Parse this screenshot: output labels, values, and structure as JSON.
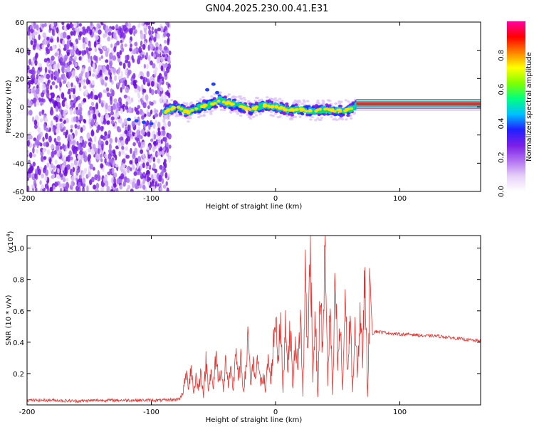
{
  "title": "GN04.2025.230.00.41.E31",
  "chart_data": [
    {
      "type": "heatmap",
      "xlabel": "Height of straight line (km)",
      "ylabel": "Frequency (Hz)",
      "xlim": [
        -200,
        165
      ],
      "ylim": [
        -60,
        60
      ],
      "x_ticks": [
        -200,
        -100,
        0,
        100
      ],
      "y_ticks": [
        -60,
        -40,
        -20,
        0,
        20,
        40,
        60
      ],
      "colorbar": {
        "label": "Normalized spectral amplitude",
        "range": [
          0,
          1
        ],
        "ticks": [
          "0.0",
          "0.2",
          "0.4",
          "0.6",
          "0.8"
        ],
        "colors": [
          "#ffffff",
          "#e6d0f8",
          "#b070f0",
          "#7a1ee8",
          "#2020ff",
          "#00c0ff",
          "#00ff80",
          "#80ff00",
          "#ffff00",
          "#ff8000",
          "#ff0000",
          "#ff00a0"
        ]
      },
      "ridge": {
        "x": [
          -110,
          -100,
          -90,
          -80,
          -70,
          -60,
          -50,
          -45,
          -40,
          -30,
          -20,
          -10,
          0,
          10,
          20,
          30,
          40,
          50,
          60,
          65,
          80,
          100,
          120,
          140,
          165
        ],
        "y": [
          -10,
          -12,
          -4,
          0,
          -4,
          0,
          2,
          5,
          3,
          1,
          -2,
          1,
          0,
          -2,
          -2,
          -3,
          -2,
          -3,
          -2,
          1,
          1,
          2,
          2,
          2,
          2
        ]
      }
    },
    {
      "type": "line",
      "xlabel": "Height of straight line (km)",
      "ylabel": "SNR (10 * v/v)",
      "multiplier": "(x10",
      "multiplier_exp": "4",
      "xlim": [
        -200,
        165
      ],
      "ylim": [
        0.0,
        1.08
      ],
      "x_ticks": [
        -200,
        -100,
        0,
        100
      ],
      "y_ticks": [
        0.2,
        0.4,
        0.6,
        0.8,
        1.0
      ],
      "series": [
        {
          "color": "#e8302c",
          "x": [
            -200,
            -180,
            -160,
            -140,
            -120,
            -100,
            -90,
            -80,
            -76,
            -74,
            -72,
            -70,
            -68,
            -66,
            -64,
            -62,
            -60,
            -58,
            -56,
            -54,
            -52,
            -50,
            -48,
            -46,
            -44,
            -42,
            -40,
            -38,
            -36,
            -34,
            -32,
            -30,
            -28,
            -26,
            -24,
            -22,
            -20,
            -18,
            -16,
            -14,
            -12,
            -10,
            -8,
            -6,
            -4,
            -2,
            0,
            2,
            4,
            6,
            8,
            10,
            12,
            14,
            16,
            18,
            20,
            22,
            24,
            26,
            28,
            30,
            32,
            34,
            36,
            38,
            40,
            42,
            44,
            46,
            48,
            50,
            52,
            54,
            56,
            58,
            60,
            62,
            64,
            66,
            68,
            70,
            72,
            74,
            76,
            78,
            80,
            90,
            100,
            110,
            120,
            130,
            140,
            150,
            160,
            165
          ],
          "y": [
            0.03,
            0.03,
            0.025,
            0.03,
            0.03,
            0.03,
            0.03,
            0.035,
            0.05,
            0.1,
            0.2,
            0.12,
            0.25,
            0.08,
            0.18,
            0.1,
            0.22,
            0.06,
            0.28,
            0.12,
            0.2,
            0.1,
            0.35,
            0.15,
            0.25,
            0.08,
            0.3,
            0.12,
            0.2,
            0.1,
            0.38,
            0.15,
            0.28,
            0.1,
            0.2,
            0.5,
            0.12,
            0.25,
            0.15,
            0.32,
            0.12,
            0.22,
            0.08,
            0.3,
            0.15,
            0.35,
            0.6,
            0.3,
            0.5,
            0.1,
            0.55,
            0.25,
            0.5,
            0.1,
            0.45,
            0.2,
            0.6,
            0.05,
            0.85,
            0.3,
            1.08,
            0.2,
            0.55,
            0.05,
            0.75,
            0.3,
            1.08,
            0.15,
            0.6,
            0.05,
            0.8,
            0.25,
            0.5,
            0.1,
            0.7,
            0.2,
            0.55,
            0.1,
            0.45,
            0.2,
            0.6,
            0.3,
            0.9,
            0.05,
            0.8,
            0.45,
            0.47,
            0.46,
            0.45,
            0.45,
            0.44,
            0.44,
            0.43,
            0.42,
            0.41,
            0.41
          ]
        }
      ]
    }
  ]
}
